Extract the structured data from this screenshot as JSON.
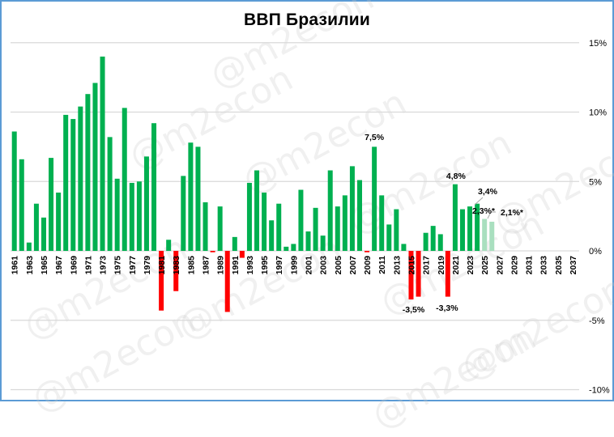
{
  "title": "ВВП Бразилии",
  "watermark": "@m2econ",
  "colors": {
    "positive": "#00b050",
    "negative": "#ff0000",
    "forecast": "#a9dfbf",
    "grid": "#d9d9d9",
    "frame": "#5b9bd5"
  },
  "chart_data": {
    "type": "bar",
    "title": "ВВП Бразилии",
    "xlabel": "",
    "ylabel": "",
    "ylim": [
      -10,
      15
    ],
    "yticks": [
      "15%",
      "10%",
      "5%",
      "0%",
      "-5%",
      "-10%"
    ],
    "ytick_values": [
      15,
      10,
      5,
      0,
      -5,
      -10
    ],
    "y_axis_position": "right",
    "grid": true,
    "legend": null,
    "x_tick_labels": [
      "1961",
      "1963",
      "1965",
      "1967",
      "1969",
      "1971",
      "1973",
      "1975",
      "1977",
      "1979",
      "1981",
      "1983",
      "1985",
      "1987",
      "1989",
      "1991",
      "1993",
      "1995",
      "1997",
      "1999",
      "2001",
      "2003",
      "2005",
      "2007",
      "2009",
      "2011",
      "2013",
      "2015",
      "2017",
      "2019",
      "2021",
      "2023",
      "2025",
      "2027",
      "2029",
      "2031",
      "2033",
      "2035",
      "2037"
    ],
    "categories": [
      1961,
      1962,
      1963,
      1964,
      1965,
      1966,
      1967,
      1968,
      1969,
      1970,
      1971,
      1972,
      1973,
      1974,
      1975,
      1976,
      1977,
      1978,
      1979,
      1980,
      1981,
      1982,
      1983,
      1984,
      1985,
      1986,
      1987,
      1988,
      1989,
      1990,
      1991,
      1992,
      1993,
      1994,
      1995,
      1996,
      1997,
      1998,
      1999,
      2000,
      2001,
      2002,
      2003,
      2004,
      2005,
      2006,
      2007,
      2008,
      2009,
      2010,
      2011,
      2012,
      2013,
      2014,
      2015,
      2016,
      2017,
      2018,
      2019,
      2020,
      2021,
      2022,
      2023,
      2024,
      2025,
      2026
    ],
    "values": [
      8.6,
      6.6,
      0.6,
      3.4,
      2.4,
      6.7,
      4.2,
      9.8,
      9.5,
      10.4,
      11.3,
      12.1,
      14.0,
      8.2,
      5.2,
      10.3,
      4.9,
      5.0,
      6.8,
      9.2,
      -4.3,
      0.8,
      -2.9,
      5.4,
      7.8,
      7.5,
      3.5,
      -0.1,
      3.2,
      -4.4,
      1.0,
      -0.5,
      4.9,
      5.8,
      4.2,
      2.2,
      3.4,
      0.3,
      0.5,
      4.4,
      1.4,
      3.1,
      1.1,
      5.8,
      3.2,
      4.0,
      6.1,
      5.1,
      -0.1,
      7.5,
      4.0,
      1.9,
      3.0,
      0.5,
      -3.5,
      -3.3,
      1.3,
      1.8,
      1.2,
      -3.3,
      4.8,
      3.0,
      3.2,
      3.4,
      2.3,
      2.1
    ],
    "forecast_years": [
      2025,
      2026
    ],
    "annotations": [
      {
        "year": 2010,
        "text": "7,5%"
      },
      {
        "year": 2015,
        "text": "-3,5%"
      },
      {
        "year": 2020,
        "text": "-3,3%"
      },
      {
        "year": 2021,
        "text": "4,8%"
      },
      {
        "year": 2024,
        "text": "3,4%"
      },
      {
        "year": 2025,
        "text": "2,3%*"
      },
      {
        "year": 2026,
        "text": "2,1%*"
      }
    ]
  }
}
